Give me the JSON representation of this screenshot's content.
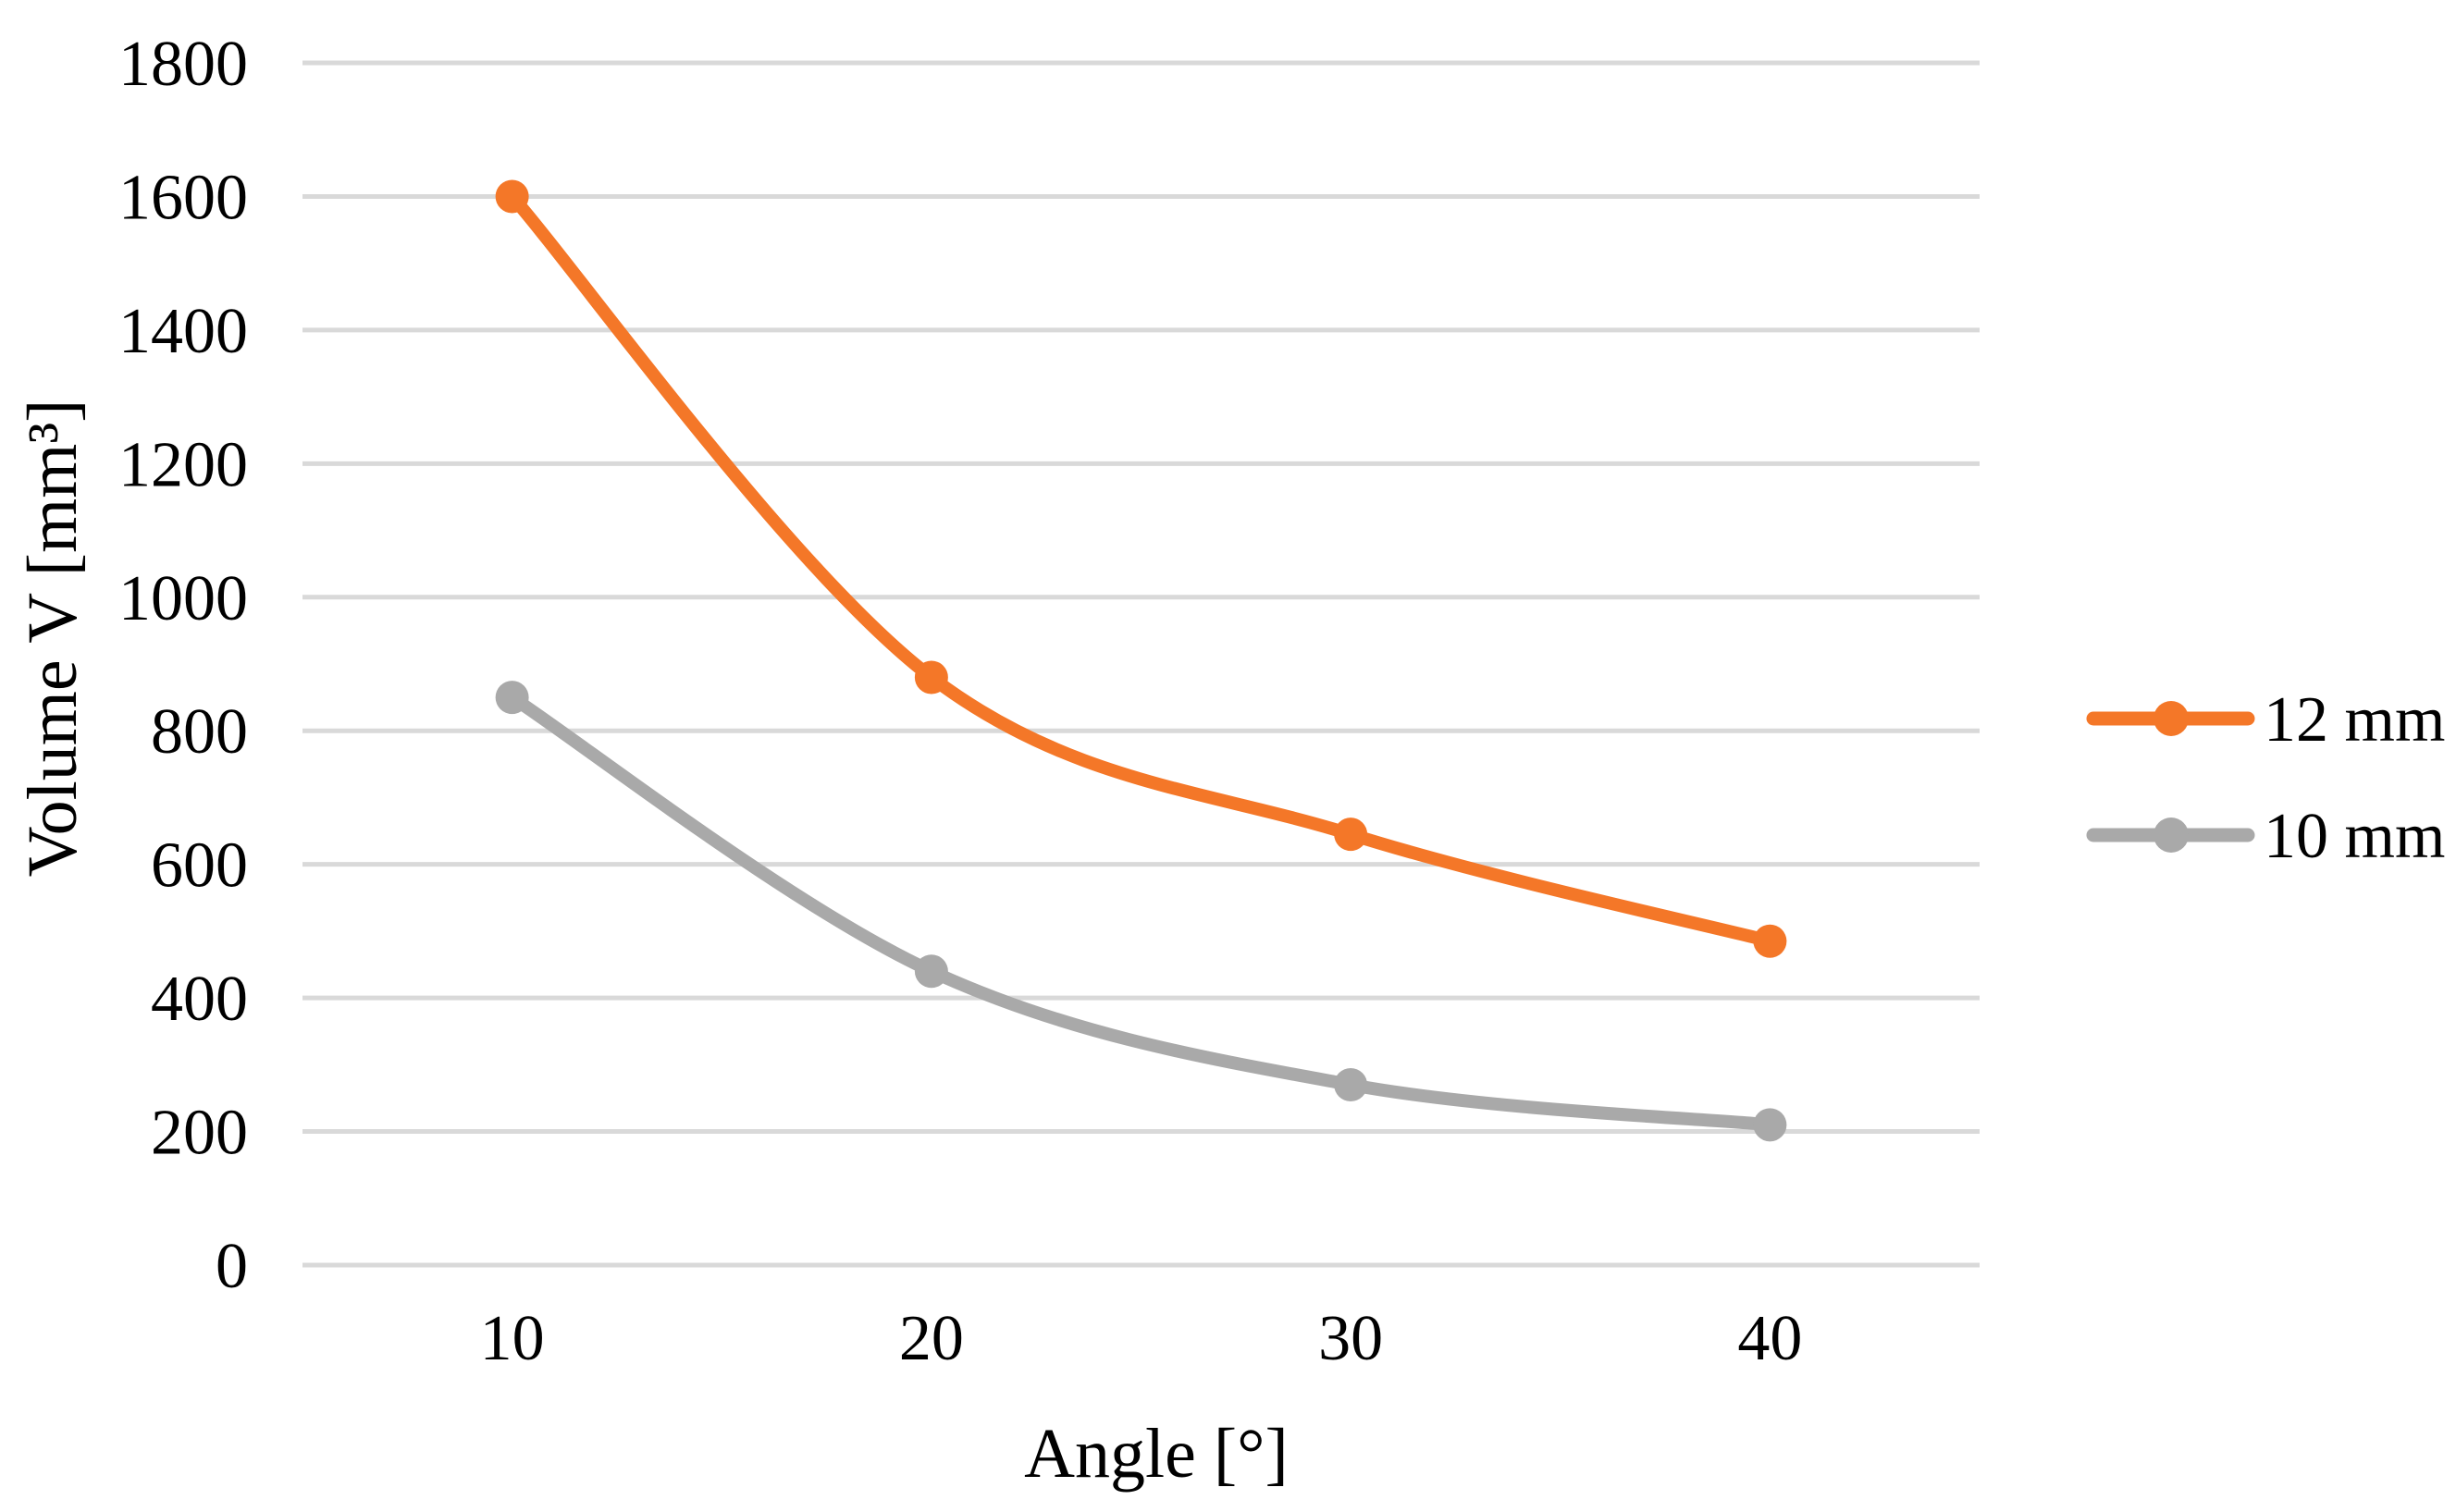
{
  "chart_data": {
    "type": "line",
    "title": "",
    "xlabel": "Angle [°]",
    "ylabel": "Volume V [mm³]",
    "x": [
      10,
      20,
      30,
      40
    ],
    "xtick_labels": [
      "10",
      "20",
      "30",
      "40"
    ],
    "yticks": [
      0,
      200,
      400,
      600,
      800,
      1000,
      1200,
      1400,
      1600,
      1800
    ],
    "ylim": [
      0,
      1800
    ],
    "grid": "horizontal",
    "smooth": true,
    "legend_position": "right",
    "series": [
      {
        "name": "12 mm",
        "color": "#F47728",
        "marker": "circle",
        "values": [
          1600,
          880,
          645,
          485
        ]
      },
      {
        "name": "10 mm",
        "color": "#A9A9A9",
        "marker": "circle",
        "values": [
          850,
          440,
          270,
          210
        ]
      }
    ],
    "colors": {
      "gridline": "#D9D9D9",
      "text": "#000000",
      "background": "#FFFFFF",
      "series_orange": "#F47728",
      "series_gray": "#A9A9A9"
    }
  }
}
